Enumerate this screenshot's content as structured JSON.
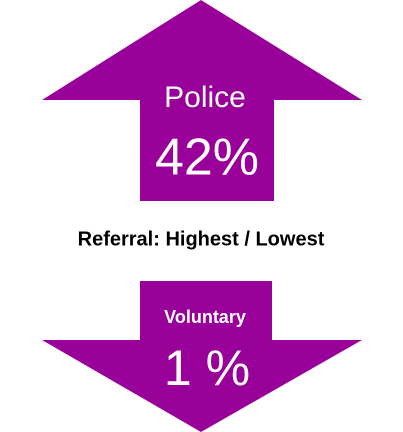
{
  "title": "Referral: Highest / Lowest",
  "highest": {
    "label": "Police",
    "value_label": "42%"
  },
  "lowest": {
    "label": "Voluntary",
    "value_label": "1 %"
  }
}
